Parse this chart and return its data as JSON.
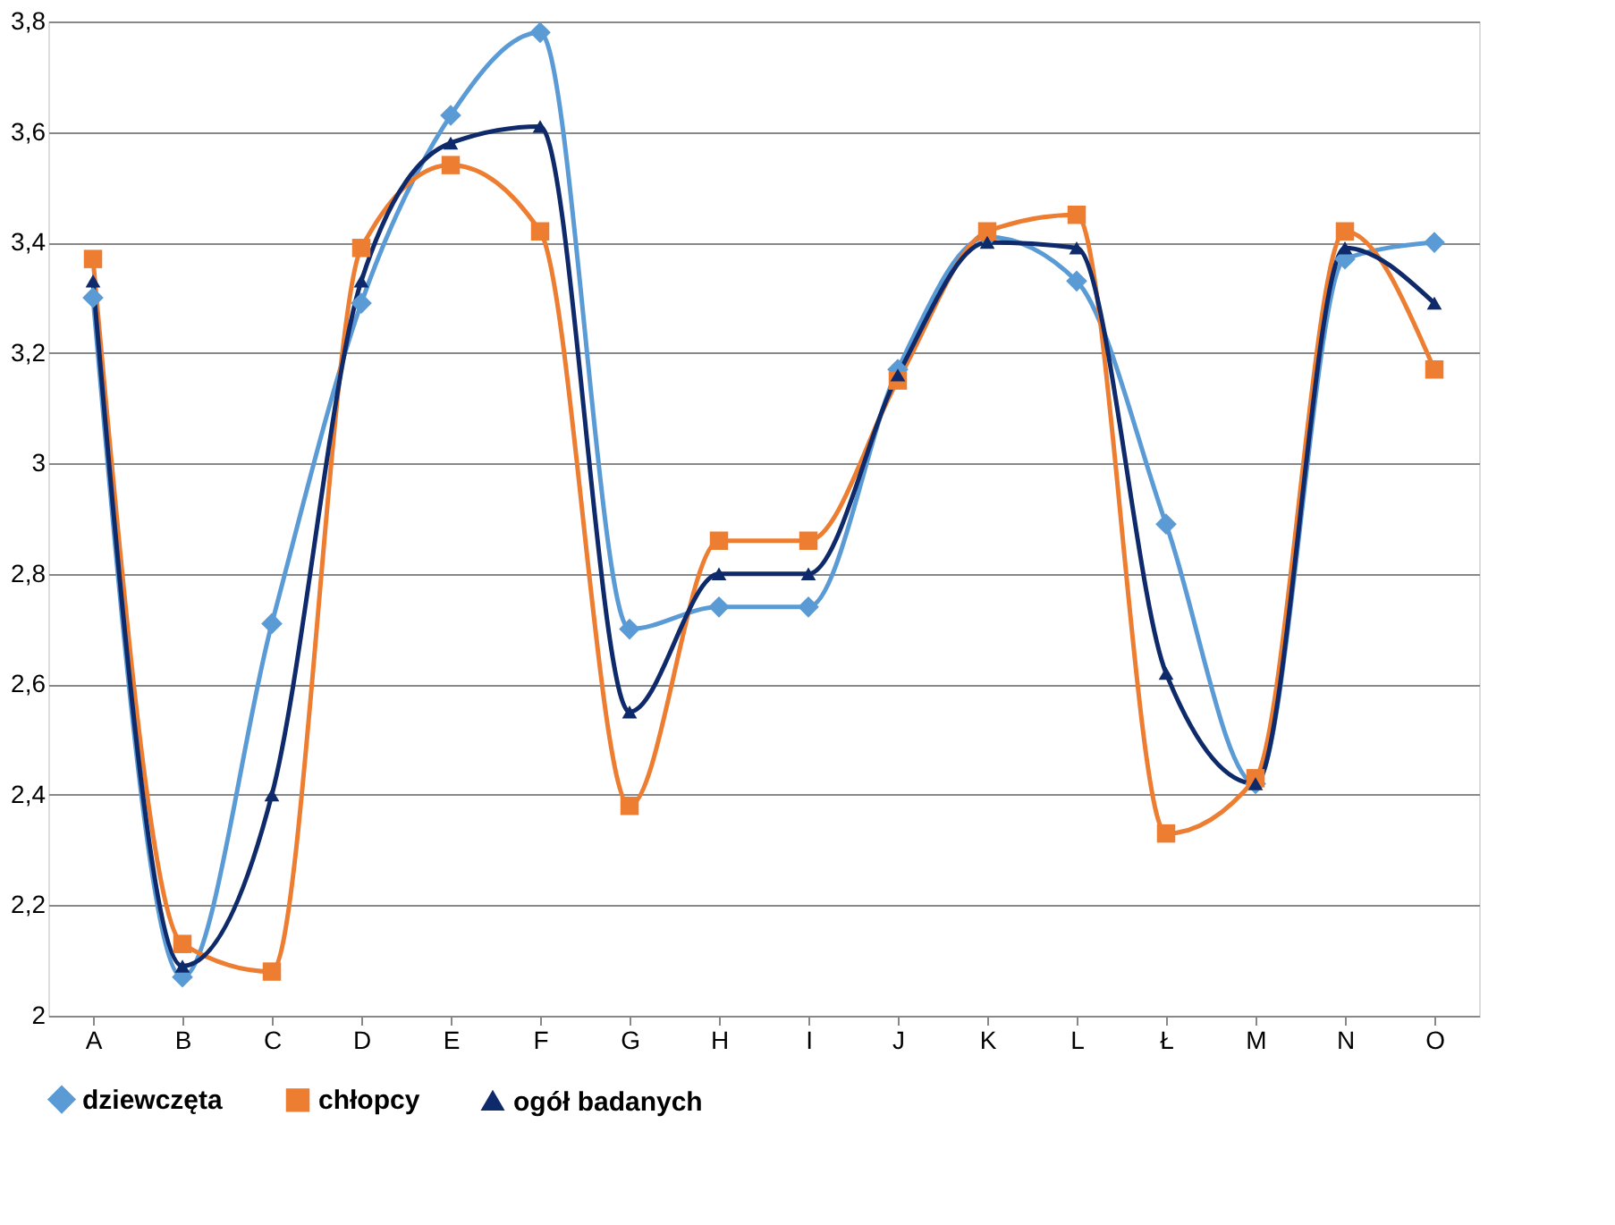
{
  "chart_data": {
    "type": "line",
    "categories": [
      "A",
      "B",
      "C",
      "D",
      "E",
      "F",
      "G",
      "H",
      "I",
      "J",
      "K",
      "L",
      "Ł",
      "M",
      "N",
      "O"
    ],
    "series": [
      {
        "name": "dziewczęta",
        "color": "#5b9bd5",
        "marker": "diamond",
        "values": [
          3.3,
          2.07,
          2.71,
          3.29,
          3.63,
          3.78,
          2.7,
          2.74,
          2.74,
          3.17,
          3.41,
          3.33,
          2.89,
          2.42,
          3.37,
          3.4
        ]
      },
      {
        "name": "chłopcy",
        "color": "#ed7d31",
        "marker": "square",
        "values": [
          3.37,
          2.13,
          2.08,
          3.39,
          3.54,
          3.42,
          2.38,
          2.86,
          2.86,
          3.15,
          3.42,
          3.45,
          2.33,
          2.43,
          3.42,
          3.17
        ]
      },
      {
        "name": "ogół badanych",
        "color": "#0f2a6b",
        "marker": "triangle",
        "values": [
          3.33,
          2.09,
          2.4,
          3.33,
          3.58,
          3.61,
          2.55,
          2.8,
          2.8,
          3.16,
          3.4,
          3.39,
          2.62,
          2.42,
          3.39,
          3.29
        ]
      }
    ],
    "ylim": [
      2,
      3.8
    ],
    "yticks": [
      {
        "value": 2,
        "label": "2"
      },
      {
        "value": 2.2,
        "label": "2,2"
      },
      {
        "value": 2.4,
        "label": "2,4"
      },
      {
        "value": 2.6,
        "label": "2,6"
      },
      {
        "value": 2.8,
        "label": "2,8"
      },
      {
        "value": 3,
        "label": "3"
      },
      {
        "value": 3.2,
        "label": "3,2"
      },
      {
        "value": 3.4,
        "label": "3,4"
      },
      {
        "value": 3.6,
        "label": "3,6"
      },
      {
        "value": 3.8,
        "label": "3,8"
      }
    ],
    "grid": "y",
    "legend": "bottom",
    "line_style": "solid"
  }
}
